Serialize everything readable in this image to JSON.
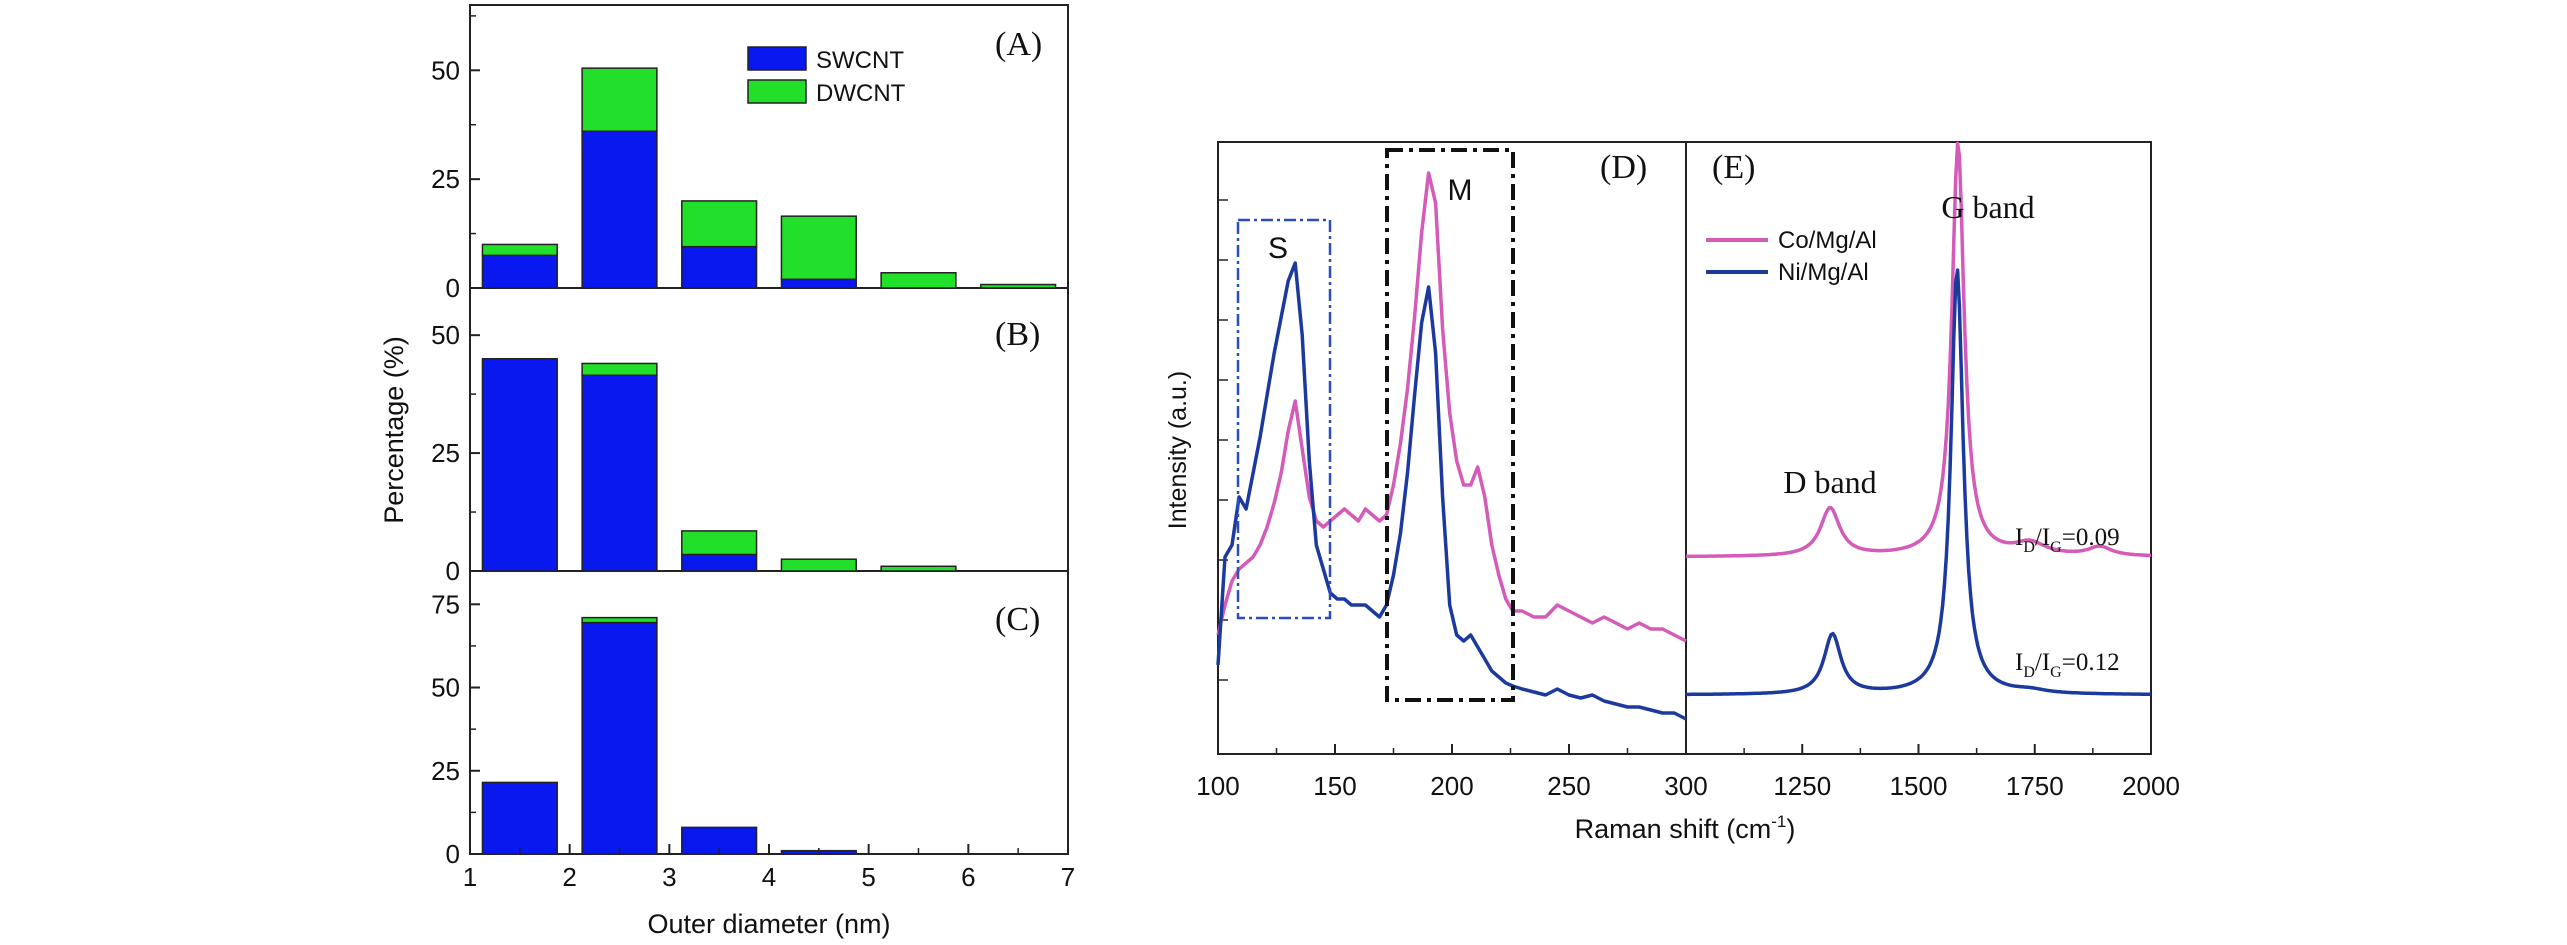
{
  "colors": {
    "swcnt": "#0a18f0",
    "dwcnt": "#22e02a",
    "co_line": "#d45bb8",
    "ni_line": "#1c3a9e",
    "axis": "#222222",
    "box_s": "#2a4ec0",
    "box_m": "#111111"
  },
  "chart_data": [
    {
      "type": "bar",
      "stacked": true,
      "panel": "(A)",
      "bin_centers": [
        1.5,
        2.5,
        3.5,
        4.5,
        5.5,
        6.5
      ],
      "bar_width": 0.75,
      "series": [
        {
          "name": "SWCNT",
          "values": [
            7.5,
            36,
            9.5,
            2,
            0,
            0
          ]
        },
        {
          "name": "DWCNT",
          "values": [
            2.5,
            14.5,
            10.5,
            14.5,
            3.5,
            0.8
          ]
        }
      ],
      "xlim": [
        1,
        7
      ],
      "ylim": [
        0,
        65
      ],
      "yticks": [
        "0",
        "25",
        "50"
      ],
      "ytick_values": [
        0,
        25,
        50
      ],
      "legend": [
        "SWCNT",
        "DWCNT"
      ]
    },
    {
      "type": "bar",
      "stacked": true,
      "panel": "(B)",
      "bin_centers": [
        1.5,
        2.5,
        3.5,
        4.5,
        5.5,
        6.5
      ],
      "bar_width": 0.75,
      "series": [
        {
          "name": "SWCNT",
          "values": [
            45,
            41.5,
            3.5,
            0,
            0,
            0
          ]
        },
        {
          "name": "DWCNT",
          "values": [
            0,
            2.5,
            5,
            2.5,
            1,
            0
          ]
        }
      ],
      "xlim": [
        1,
        7
      ],
      "ylim": [
        0,
        60
      ],
      "yticks": [
        "0",
        "25",
        "50"
      ],
      "ytick_values": [
        0,
        25,
        50
      ]
    },
    {
      "type": "bar",
      "stacked": true,
      "panel": "(C)",
      "bin_centers": [
        1.5,
        2.5,
        3.5,
        4.5,
        5.5,
        6.5
      ],
      "bar_width": 0.75,
      "series": [
        {
          "name": "SWCNT",
          "values": [
            21.5,
            69.5,
            8,
            1,
            0,
            0
          ]
        },
        {
          "name": "DWCNT",
          "values": [
            0,
            1.5,
            0,
            0,
            0,
            0
          ]
        }
      ],
      "xlim": [
        1,
        7
      ],
      "ylim": [
        0,
        85
      ],
      "yticks": [
        "0",
        "25",
        "50",
        "75"
      ],
      "ytick_values": [
        0,
        25,
        50,
        75
      ],
      "xticks": [
        "1",
        "2",
        "3",
        "4",
        "5",
        "6",
        "7"
      ],
      "xtick_values": [
        1,
        2,
        3,
        4,
        5,
        6,
        7
      ],
      "xlabel": "Outer diameter (nm)",
      "ylabel": "Percentage (%)"
    },
    {
      "type": "line",
      "panel": "(D)",
      "xlim": [
        100,
        300
      ],
      "ylim": [
        0,
        1
      ],
      "xticks": [
        "100",
        "150",
        "200",
        "250",
        "300"
      ],
      "xtick_values": [
        100,
        150,
        200,
        250,
        300
      ],
      "ylabel": "Intensity (a.u.)",
      "annotations": [
        "S",
        "M"
      ],
      "series": [
        {
          "name": "Co/Mg/Al",
          "x": [
            100,
            103,
            106,
            109,
            112,
            115,
            118,
            121,
            124,
            127,
            130,
            133,
            136,
            139,
            142,
            145,
            148,
            151,
            154,
            157,
            160,
            163,
            166,
            169,
            172,
            175,
            178,
            181,
            184,
            187,
            190,
            193,
            196,
            199,
            202,
            205,
            208,
            211,
            214,
            217,
            220,
            223,
            226,
            230,
            235,
            240,
            245,
            250,
            255,
            260,
            265,
            270,
            275,
            280,
            285,
            290,
            295,
            300
          ],
          "y": [
            0.15,
            0.2,
            0.24,
            0.26,
            0.27,
            0.28,
            0.3,
            0.33,
            0.37,
            0.42,
            0.49,
            0.54,
            0.46,
            0.38,
            0.34,
            0.33,
            0.34,
            0.35,
            0.36,
            0.35,
            0.34,
            0.36,
            0.35,
            0.34,
            0.35,
            0.4,
            0.47,
            0.56,
            0.68,
            0.82,
            0.92,
            0.87,
            0.66,
            0.52,
            0.44,
            0.4,
            0.4,
            0.43,
            0.38,
            0.3,
            0.25,
            0.21,
            0.19,
            0.19,
            0.18,
            0.18,
            0.2,
            0.19,
            0.18,
            0.17,
            0.18,
            0.17,
            0.16,
            0.17,
            0.16,
            0.16,
            0.15,
            0.14
          ]
        },
        {
          "name": "Ni/Mg/Al",
          "x": [
            100,
            103,
            106,
            109,
            112,
            115,
            118,
            121,
            124,
            127,
            130,
            133,
            136,
            139,
            142,
            145,
            148,
            151,
            154,
            157,
            160,
            163,
            166,
            169,
            172,
            175,
            178,
            181,
            184,
            187,
            190,
            193,
            196,
            199,
            202,
            205,
            208,
            211,
            214,
            217,
            220,
            223,
            226,
            230,
            235,
            240,
            245,
            250,
            255,
            260,
            265,
            270,
            275,
            280,
            285,
            290,
            295,
            300
          ],
          "y": [
            0.1,
            0.28,
            0.3,
            0.38,
            0.36,
            0.42,
            0.48,
            0.55,
            0.62,
            0.68,
            0.74,
            0.77,
            0.65,
            0.44,
            0.3,
            0.26,
            0.22,
            0.21,
            0.21,
            0.2,
            0.2,
            0.2,
            0.19,
            0.18,
            0.2,
            0.25,
            0.32,
            0.42,
            0.55,
            0.67,
            0.73,
            0.62,
            0.38,
            0.2,
            0.15,
            0.14,
            0.15,
            0.13,
            0.11,
            0.09,
            0.08,
            0.07,
            0.065,
            0.06,
            0.055,
            0.05,
            0.06,
            0.05,
            0.045,
            0.05,
            0.04,
            0.035,
            0.03,
            0.03,
            0.025,
            0.02,
            0.02,
            0.01
          ]
        }
      ]
    },
    {
      "type": "line",
      "panel": "(E)",
      "xlim": [
        1000,
        2000
      ],
      "ylim": [
        0,
        1
      ],
      "xticks": [
        "1250",
        "1500",
        "1750",
        "2000"
      ],
      "xtick_values": [
        1250,
        1500,
        1750,
        2000
      ],
      "legend": [
        "Co/Mg/Al",
        "Ni/Mg/Al"
      ],
      "annotations": [
        "G band",
        "D band"
      ],
      "ratio_labels": [
        {
          "label": "I",
          "sub1": "D",
          "slash": "/I",
          "sub2": "G",
          "value": "=0.09"
        },
        {
          "label": "I",
          "sub1": "D",
          "slash": "/I",
          "sub2": "G",
          "value": "=0.12"
        }
      ],
      "series": [
        {
          "name": "Co/Mg/Al",
          "peaks": [
            {
              "center": 1310,
              "height": 0.08,
              "width": 25
            },
            {
              "center": 1585,
              "height": 0.69,
              "width": 16
            },
            {
              "center": 1740,
              "height": 0.02,
              "width": 40
            },
            {
              "center": 1890,
              "height": 0.015,
              "width": 30
            }
          ],
          "baseline": 0.23
        },
        {
          "name": "Ni/Mg/Al",
          "peaks": [
            {
              "center": 1315,
              "height": 0.1,
              "width": 22
            },
            {
              "center": 1583,
              "height": 0.71,
              "width": 16
            },
            {
              "center": 1740,
              "height": 0.005,
              "width": 40
            }
          ],
          "baseline": 0.0
        }
      ]
    }
  ],
  "labels": {
    "panel_a": "(A)",
    "panel_b": "(B)",
    "panel_c": "(C)",
    "panel_d": "(D)",
    "panel_e": "(E)",
    "legend_sw": "SWCNT",
    "legend_dw": "DWCNT",
    "ylabel_left": "Percentage (%)",
    "xlabel_left": "Outer diameter (nm)",
    "ylabel_right": "Intensity (a.u.)",
    "xlabel_right_main": "Raman shift (cm",
    "xlabel_right_sup": "-1",
    "xlabel_right_end": ")",
    "box_s": "S",
    "box_m": "M",
    "g_band": "G band",
    "d_band": "D band",
    "legend_co": "Co/Mg/Al",
    "legend_ni": "Ni/Mg/Al"
  }
}
